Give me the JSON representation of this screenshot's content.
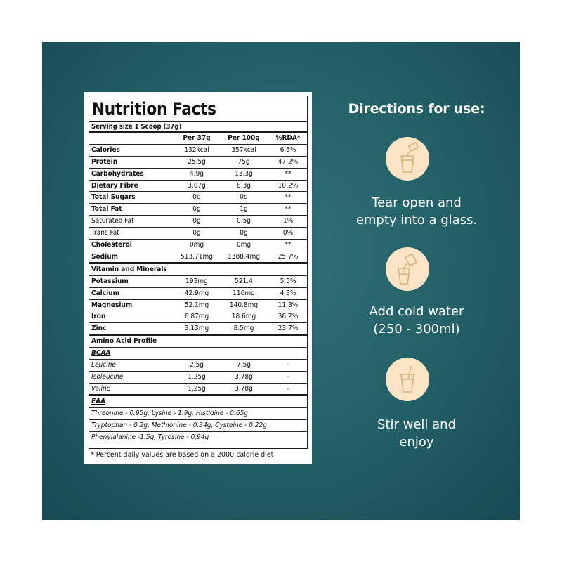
{
  "nutrition": {
    "title": "Nutrition Facts",
    "serving": "Serving size 1 Scoop (37g)",
    "headers": [
      "",
      "Per 37g",
      "Per 100g",
      "%RDA*"
    ],
    "macros": [
      {
        "name": "Calories",
        "per37": "132kcal",
        "per100": "357kcal",
        "rda": "6.6%",
        "bold": true
      },
      {
        "name": "Protein",
        "per37": "25.5g",
        "per100": "75g",
        "rda": "47.2%",
        "bold": true
      },
      {
        "name": "Carbohydrates",
        "per37": "4.9g",
        "per100": "13.3g",
        "rda": "**",
        "bold": true
      },
      {
        "name": "Dietary Fibre",
        "per37": "3.07g",
        "per100": "8.3g",
        "rda": "10.2%",
        "bold": true
      },
      {
        "name": "Total Sugars",
        "per37": "0g",
        "per100": "0g",
        "rda": "**",
        "bold": true
      },
      {
        "name": "Total Fat",
        "per37": "0g",
        "per100": "1g",
        "rda": "**",
        "bold": true
      },
      {
        "name": "Saturated Fat",
        "per37": "0g",
        "per100": "0.5g",
        "rda": "1%",
        "bold": false
      },
      {
        "name": "Trans Fat",
        "per37": "0g",
        "per100": "0g",
        "rda": "0%",
        "bold": false
      },
      {
        "name": "Cholesterol",
        "per37": "0mg",
        "per100": "0mg",
        "rda": "**",
        "bold": true
      },
      {
        "name": "Sodium",
        "per37": "513.71mg",
        "per100": "1388.4mg",
        "rda": "25.7%",
        "bold": true
      }
    ],
    "vitamins_header": "Vitamin and Minerals",
    "vitamins": [
      {
        "name": "Potassium",
        "per37": "193mg",
        "per100": "521.4",
        "rda": "5.5%"
      },
      {
        "name": "Calcium",
        "per37": "42.9mg",
        "per100": "116mg",
        "rda": "4.3%"
      },
      {
        "name": "Magnesium",
        "per37": "52.1mg",
        "per100": "140.8mg",
        "rda": "11.8%"
      },
      {
        "name": "Iron",
        "per37": "6.87mg",
        "per100": "18.6mg",
        "rda": "36.2%"
      },
      {
        "name": "Zinc",
        "per37": "3.13mg",
        "per100": "8.5mg",
        "rda": "23.7%"
      }
    ],
    "amino_header": "Amino Acid Profile",
    "bcaa_header": "BCAA",
    "bcaa": [
      {
        "name": "Leucine",
        "per37": "2.5g",
        "per100": "7.5g",
        "rda": "-"
      },
      {
        "name": "Isoleucine",
        "per37": "1.25g",
        "per100": "3.78g",
        "rda": "-"
      },
      {
        "name": "Valine",
        "per37": "1.25g",
        "per100": "3.78g",
        "rda": "-"
      }
    ],
    "eaa_header": "EAA",
    "eaa_lines": [
      "Threonine - 0.95g, Lysine - 1.9g, Histidine - 0.65g",
      "Tryptophan - 0.2g, Methionine - 0.34g, Cysteine - 0.22g",
      "Phenylalanine -1.5g, Tyrosine - 0.94g"
    ],
    "footnote": "* Percent daily values are based on a 2000 calorie diet"
  },
  "directions": {
    "title": "Directions for use:",
    "steps": [
      {
        "icon": "tear-sachet-glass-icon",
        "line1": "Tear open and",
        "line2": "empty into a glass."
      },
      {
        "icon": "pour-water-glass-icon",
        "line1": "Add cold water",
        "line2": "(250 - 300ml)"
      },
      {
        "icon": "stir-glass-icon",
        "line1": "Stir well and",
        "line2": "enjoy"
      }
    ]
  },
  "colors": {
    "background": "#235f66",
    "icon_circle": "#fbe4c6",
    "icon_stroke": "#d8b27a"
  }
}
